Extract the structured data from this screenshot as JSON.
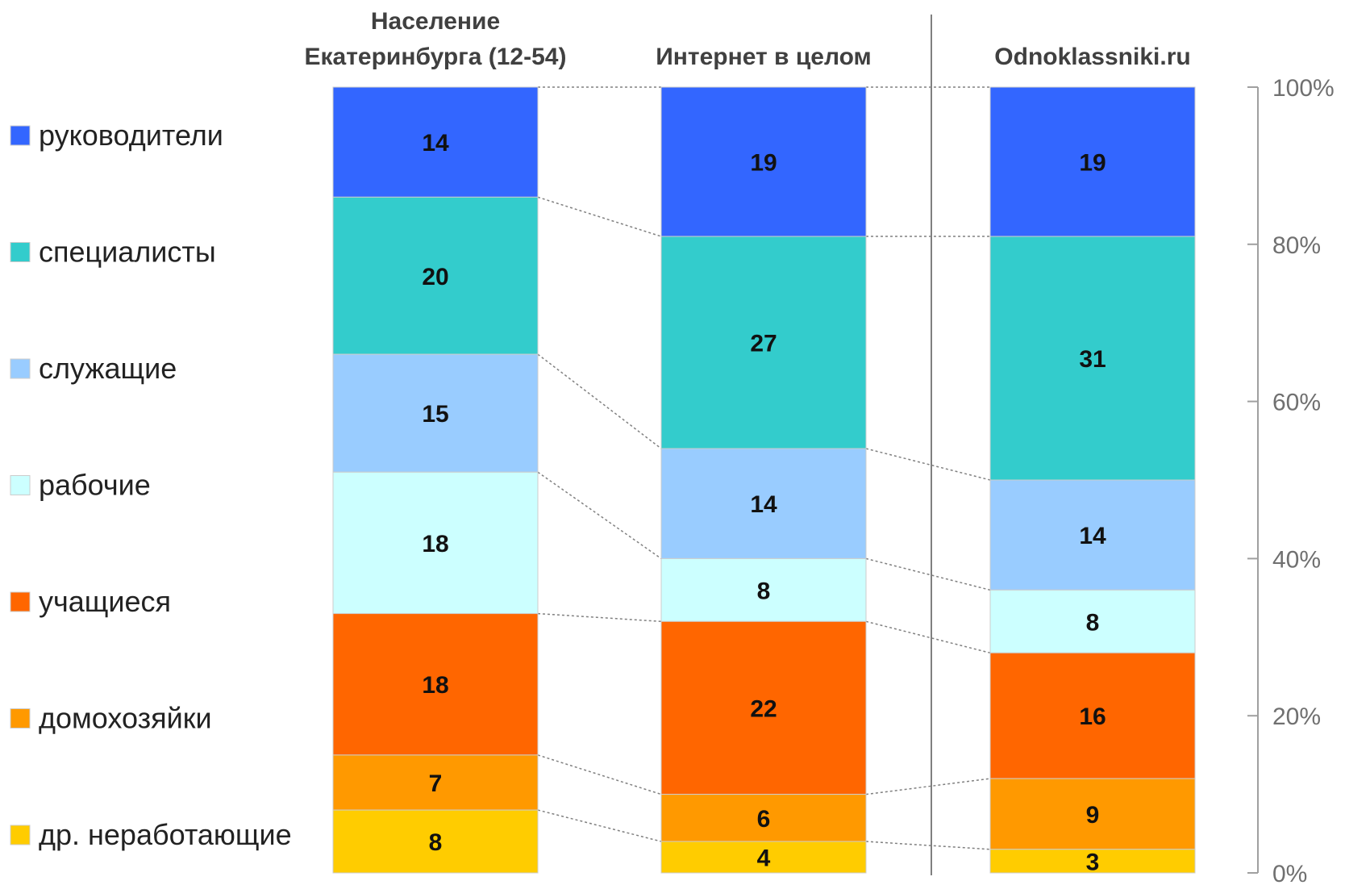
{
  "chart_data": {
    "type": "bar",
    "stacked": true,
    "categories": [
      "Население Екатеринбурга (12-54)",
      "Интернет в целом",
      "Odnoklassniki.ru"
    ],
    "category_title_lines": [
      [
        "Население",
        "Екатеринбурга (12-54)"
      ],
      [
        "Интернет в целом"
      ],
      [
        "Odnoklassniki.ru"
      ]
    ],
    "series": [
      {
        "name": "руководители",
        "values": [
          14,
          19,
          19
        ],
        "color": "#3366FF"
      },
      {
        "name": "специалисты",
        "values": [
          20,
          27,
          31
        ],
        "color": "#33CCCC"
      },
      {
        "name": "служащие",
        "values": [
          15,
          14,
          14
        ],
        "color": "#99CCFF"
      },
      {
        "name": "рабочие",
        "values": [
          18,
          8,
          8
        ],
        "color": "#CCFFFF"
      },
      {
        "name": "учащиеся",
        "values": [
          18,
          22,
          16
        ],
        "color": "#FF6600"
      },
      {
        "name": "домохозяйки",
        "values": [
          7,
          6,
          9
        ],
        "color": "#FF9900"
      },
      {
        "name": "др. неработающие",
        "values": [
          8,
          4,
          3
        ],
        "color": "#FFCC00"
      }
    ],
    "y_ticks": [
      "0%",
      "20%",
      "40%",
      "60%",
      "80%",
      "100%"
    ],
    "ylim": [
      0,
      100
    ],
    "legend_position": "left",
    "series_connector_lines": true,
    "grid": false
  }
}
